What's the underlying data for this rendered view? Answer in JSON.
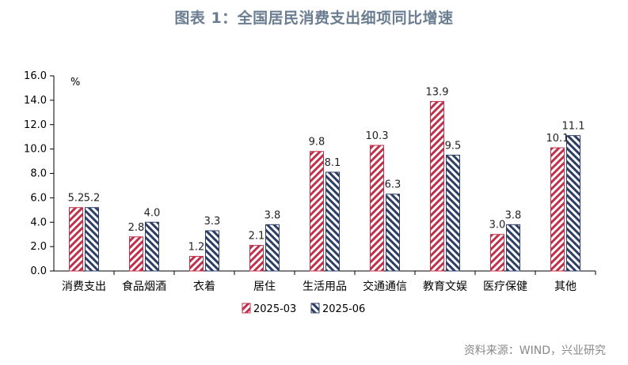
{
  "title": "图表 1：全国居民消费支出细项同比增速",
  "source": "资料来源：WIND，兴业研究",
  "chart_data": {
    "type": "bar",
    "title": "图表 1：全国居民消费支出细项同比增速",
    "unit": "%",
    "ylim": [
      0,
      16
    ],
    "yticks": [
      "0.0",
      "2.0",
      "4.0",
      "6.0",
      "8.0",
      "10.0",
      "12.0",
      "14.0",
      "16.0"
    ],
    "categories": [
      "消费支出",
      "食品烟酒",
      "衣着",
      "居住",
      "生活用品",
      "交通通信",
      "教育文娱",
      "医疗保健",
      "其他"
    ],
    "series": [
      {
        "name": "2025-03",
        "values": [
          5.2,
          2.8,
          1.2,
          2.1,
          9.8,
          10.3,
          13.9,
          3.0,
          10.1
        ],
        "color": "#c0304a"
      },
      {
        "name": "2025-06",
        "values": [
          5.2,
          4.0,
          3.3,
          3.8,
          8.1,
          6.3,
          9.5,
          3.8,
          11.1
        ],
        "color": "#2c3e66"
      }
    ],
    "labels": [
      [
        "5.2",
        "2.8",
        "1.2",
        "2.1",
        "9.8",
        "10.3",
        "13.9",
        "3.0",
        "10.1"
      ],
      [
        "5.2",
        "4.0",
        "3.3",
        "3.8",
        "8.1",
        "6.3",
        "9.5",
        "3.8",
        "11.1"
      ]
    ],
    "grid": false,
    "legend_position": "bottom"
  }
}
